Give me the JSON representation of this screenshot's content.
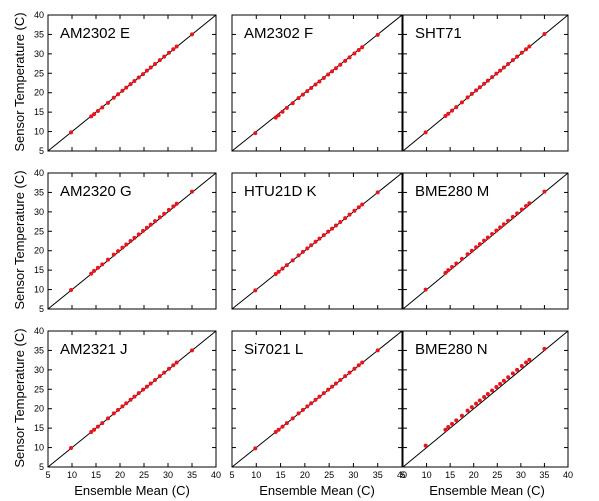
{
  "chart_data": {
    "type": "scatter",
    "layout": "3x3 grid of panels, shared axes",
    "xlabel": "Ensemble Mean (C)",
    "ylabel": "Sensor Temperature (C)",
    "xlim": [
      5,
      40
    ],
    "ylim": [
      5,
      40
    ],
    "xticks": [
      5,
      10,
      15,
      20,
      25,
      30,
      35,
      40
    ],
    "yticks": [
      5,
      10,
      15,
      20,
      25,
      30,
      35,
      40
    ],
    "reference_line": "y = x",
    "marker_color": "#e8141e",
    "line_color": "#000000",
    "x": [
      9.8,
      14.0,
      14.6,
      15.4,
      16.3,
      17.5,
      18.7,
      19.6,
      20.5,
      21.3,
      22.2,
      23.0,
      23.9,
      24.8,
      25.6,
      26.4,
      27.3,
      28.3,
      29.2,
      30.2,
      31.1,
      31.8,
      35.0
    ],
    "panels": [
      {
        "title": "AM2302 E",
        "y": [
          9.8,
          13.9,
          14.5,
          15.3,
          16.2,
          17.4,
          18.7,
          19.6,
          20.5,
          21.3,
          22.2,
          23.0,
          23.9,
          24.8,
          25.7,
          26.5,
          27.4,
          28.4,
          29.3,
          30.3,
          31.2,
          31.9,
          35.0
        ]
      },
      {
        "title": "AM2302 F",
        "y": [
          9.6,
          13.6,
          14.2,
          15.1,
          16.1,
          17.3,
          18.6,
          19.5,
          20.4,
          21.2,
          22.1,
          22.9,
          23.8,
          24.7,
          25.5,
          26.3,
          27.2,
          28.2,
          29.1,
          30.1,
          31.0,
          31.7,
          34.9
        ]
      },
      {
        "title": "SHT71",
        "y": [
          9.8,
          14.0,
          14.6,
          15.4,
          16.3,
          17.5,
          18.8,
          19.7,
          20.6,
          21.4,
          22.3,
          23.1,
          24.0,
          24.9,
          25.7,
          26.5,
          27.4,
          28.4,
          29.3,
          30.3,
          31.2,
          31.9,
          35.1
        ]
      },
      {
        "title": "AM2320 G",
        "y": [
          9.9,
          14.1,
          14.8,
          15.6,
          16.5,
          17.7,
          19.0,
          19.9,
          20.8,
          21.6,
          22.5,
          23.3,
          24.2,
          25.1,
          25.9,
          26.7,
          27.6,
          28.6,
          29.5,
          30.5,
          31.4,
          32.1,
          35.2
        ]
      },
      {
        "title": "HTU21D K",
        "y": [
          9.8,
          14.0,
          14.6,
          15.4,
          16.3,
          17.5,
          18.8,
          19.7,
          20.6,
          21.4,
          22.3,
          23.1,
          24.0,
          24.9,
          25.7,
          26.5,
          27.4,
          28.4,
          29.3,
          30.3,
          31.2,
          31.9,
          35.0
        ]
      },
      {
        "title": "BME280 M",
        "y": [
          10.0,
          14.3,
          15.0,
          15.8,
          16.7,
          17.9,
          19.1,
          20.0,
          20.9,
          21.7,
          22.6,
          23.4,
          24.3,
          25.2,
          26.0,
          26.8,
          27.7,
          28.7,
          29.6,
          30.6,
          31.5,
          32.2,
          35.2
        ]
      },
      {
        "title": "AM2321 J",
        "y": [
          9.9,
          14.0,
          14.6,
          15.4,
          16.3,
          17.5,
          18.8,
          19.7,
          20.6,
          21.4,
          22.3,
          23.1,
          24.0,
          24.9,
          25.7,
          26.5,
          27.4,
          28.4,
          29.3,
          30.3,
          31.2,
          31.9,
          35.0
        ]
      },
      {
        "title": "Si7021 L",
        "y": [
          9.8,
          14.0,
          14.6,
          15.4,
          16.3,
          17.5,
          18.8,
          19.7,
          20.6,
          21.4,
          22.3,
          23.1,
          24.0,
          24.9,
          25.7,
          26.5,
          27.4,
          28.4,
          29.3,
          30.3,
          31.2,
          31.9,
          35.0
        ]
      },
      {
        "title": "BME280 N",
        "y": [
          10.5,
          14.6,
          15.3,
          16.1,
          17.0,
          18.2,
          19.5,
          20.4,
          21.3,
          22.1,
          23.0,
          23.8,
          24.7,
          25.6,
          26.4,
          27.2,
          28.1,
          29.1,
          30.0,
          31.0,
          31.9,
          32.6,
          35.4
        ]
      }
    ]
  }
}
